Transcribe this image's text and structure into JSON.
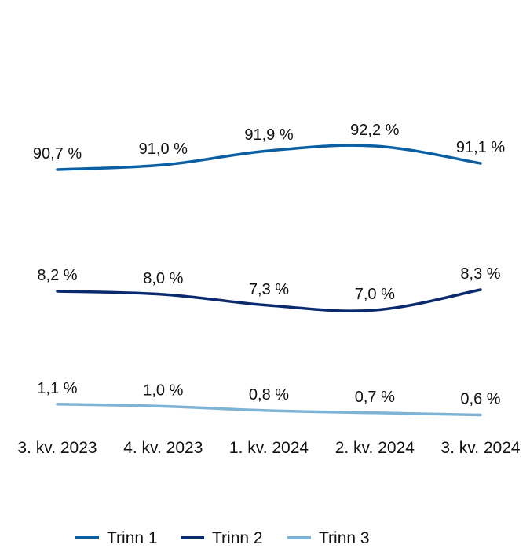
{
  "chart_data": {
    "type": "line",
    "categories": [
      "3. kv. 2023",
      "4. kv. 2023",
      "1. kv. 2024",
      "2. kv. 2024",
      "3. kv. 2024"
    ],
    "series": [
      {
        "name": "Trinn 1",
        "color": "#0a5fa3",
        "values": [
          90.7,
          91.0,
          91.9,
          92.2,
          91.1
        ],
        "labels": [
          "90,7 %",
          "91,0 %",
          "91,9 %",
          "92,2 %",
          "91,1 %"
        ]
      },
      {
        "name": "Trinn 2",
        "color": "#0b2a6e",
        "values": [
          8.2,
          8.0,
          7.3,
          7.0,
          8.3
        ],
        "labels": [
          "8,2 %",
          "8,0 %",
          "7,3 %",
          "7,0 %",
          "8,3 %"
        ]
      },
      {
        "name": "Trinn 3",
        "color": "#7fb3d5",
        "values": [
          1.1,
          1.0,
          0.8,
          0.7,
          0.6
        ],
        "labels": [
          "1,1 %",
          "1,0 %",
          "0,8 %",
          "0,7 %",
          "0,6 %"
        ]
      }
    ],
    "legend_position": "bottom",
    "grid": false,
    "title": "",
    "xlabel": "",
    "ylabel": ""
  }
}
